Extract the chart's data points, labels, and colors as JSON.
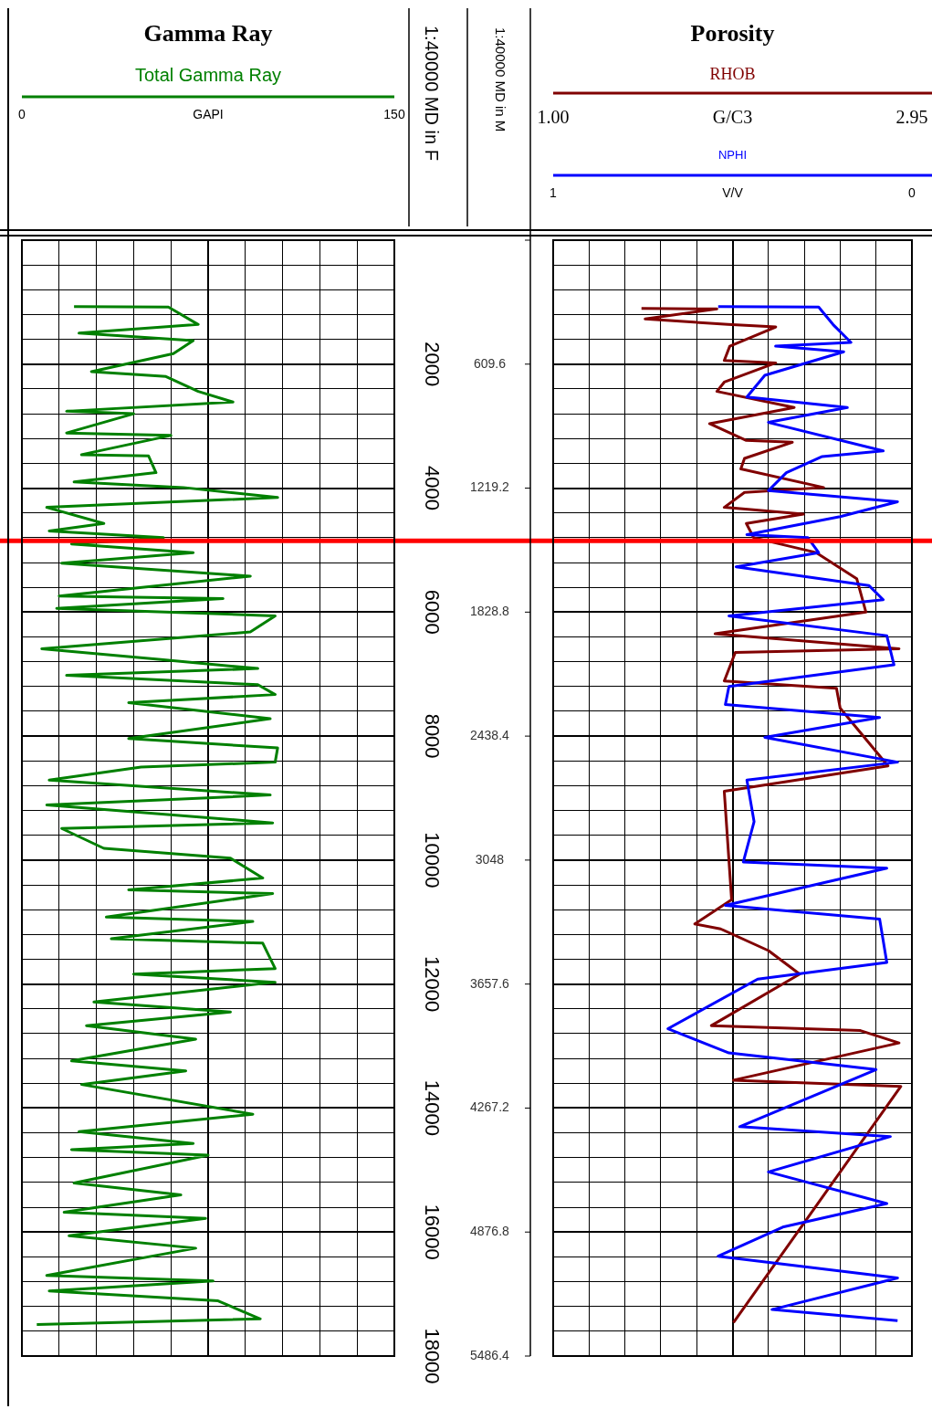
{
  "chart_data": [
    {
      "type": "line",
      "title": "Gamma Ray",
      "xlabel": "GAPI",
      "ylabel": "1:40000 MD in F",
      "y2label": "1:40000 MD in M",
      "legend": "top",
      "grid": true,
      "xlim": [
        0,
        150
      ],
      "xticks": [
        0,
        {
          "value": 15,
          "label": null
        },
        {
          "value": 30,
          "label": null
        },
        {
          "value": 45,
          "label": null
        },
        {
          "value": 60,
          "label": null
        },
        {
          "value": 75,
          "label": null
        },
        {
          "value": 90,
          "label": null
        },
        {
          "value": 105,
          "label": null
        },
        {
          "value": 120,
          "label": null
        },
        {
          "value": 135,
          "label": null
        },
        150
      ],
      "ylim": [
        18000,
        0
      ],
      "yticks": [
        {
          "value": 0,
          "label": null
        },
        {
          "value": 400,
          "label": null
        },
        {
          "value": 800,
          "label": null
        },
        {
          "value": 1200,
          "label": null
        },
        {
          "value": 1600,
          "label": null
        },
        2000,
        {
          "value": 2400,
          "label": null
        },
        {
          "value": 2800,
          "label": null
        },
        {
          "value": 3200,
          "label": null
        },
        {
          "value": 3600,
          "label": null
        },
        4000,
        {
          "value": 4400,
          "label": null
        },
        {
          "value": 4800,
          "label": null
        },
        {
          "value": 5200,
          "label": null
        },
        {
          "value": 5600,
          "label": null
        },
        6000,
        {
          "value": 6400,
          "label": null
        },
        {
          "value": 6800,
          "label": null
        },
        {
          "value": 7200,
          "label": null
        },
        {
          "value": 7600,
          "label": null
        },
        8000,
        {
          "value": 8400,
          "label": null
        },
        {
          "value": 8800,
          "label": null
        },
        {
          "value": 9200,
          "label": null
        },
        {
          "value": 9600,
          "label": null
        },
        10000,
        {
          "value": 10400,
          "label": null
        },
        {
          "value": 10800,
          "label": null
        },
        {
          "value": 11200,
          "label": null
        },
        {
          "value": 11600,
          "label": null
        },
        12000,
        {
          "value": 12400,
          "label": null
        },
        {
          "value": 12800,
          "label": null
        },
        {
          "value": 13200,
          "label": null
        },
        {
          "value": 13600,
          "label": null
        },
        14000,
        {
          "value": 14400,
          "label": null
        },
        {
          "value": 14800,
          "label": null
        },
        {
          "value": 15200,
          "label": null
        },
        {
          "value": 15600,
          "label": null
        },
        16000,
        {
          "value": 16400,
          "label": null
        },
        {
          "value": 16800,
          "label": null
        },
        {
          "value": 17200,
          "label": null
        },
        {
          "value": 17600,
          "label": null
        },
        18000
      ],
      "y2lim": [
        5486.4,
        0
      ],
      "y2ticks": [
        {
          "value": 0,
          "label": null
        },
        609.6,
        1219.2,
        1828.8,
        2438.4,
        3048,
        3657.6,
        4267.2,
        4876.8,
        5486.4
      ],
      "ref_lines": [
        {
          "axis": "y",
          "value": 4850,
          "color": "#ff0000"
        }
      ],
      "series": [
        {
          "name": "Total Gamma Ray",
          "color": "#008000",
          "x": [
            21,
            59,
            71,
            23,
            69,
            61,
            28,
            58,
            71,
            85,
            18,
            45,
            18,
            60,
            24,
            51,
            54,
            21,
            65,
            103,
            10,
            33,
            11,
            57,
            20,
            69,
            16,
            92,
            15,
            81,
            14,
            102,
            92,
            8,
            55,
            95,
            18,
            95,
            102,
            43,
            100,
            43,
            103,
            102,
            48,
            11,
            100,
            10,
            101,
            16,
            33,
            84,
            97,
            43,
            101,
            34,
            93,
            36,
            97,
            102,
            45,
            102,
            29,
            84,
            26,
            70,
            20,
            66,
            24,
            93,
            23,
            69,
            20,
            75,
            21,
            64,
            17,
            74,
            19,
            70,
            10,
            77,
            11,
            79,
            96,
            6
          ],
          "values": [
            1070,
            1080,
            1360,
            1500,
            1620,
            1830,
            2120,
            2200,
            2440,
            2610,
            2760,
            2800,
            3110,
            3150,
            3460,
            3480,
            3750,
            3900,
            3990,
            4150,
            4310,
            4570,
            4690,
            4800,
            4900,
            5040,
            5210,
            5420,
            5740,
            5780,
            5940,
            6060,
            6320,
            6590,
            6760,
            6910,
            7020,
            7170,
            7330,
            7460,
            7720,
            8040,
            8190,
            8420,
            8500,
            8710,
            8950,
            9110,
            9400,
            9490,
            9810,
            9970,
            10290,
            10480,
            10540,
            10920,
            10990,
            11270,
            11340,
            11750,
            11840,
            11970,
            12290,
            12450,
            12670,
            12890,
            13240,
            13400,
            13620,
            14100,
            14380,
            14570,
            14670,
            14760,
            15210,
            15400,
            15680,
            15780,
            16060,
            16260,
            16700,
            16790,
            16950,
            17110,
            17400,
            17490
          ]
        }
      ]
    },
    {
      "type": "line",
      "title": "Porosity",
      "xlabel": "G/C3",
      "x2label": "V/V",
      "legend": "top",
      "grid": true,
      "tick_labels": "x",
      "xlim": [
        1,
        2.95
      ],
      "xticks": [
        {
          "value": 1,
          "label": "1.00"
        },
        2.95
      ],
      "x2lim": [
        1,
        0
      ],
      "x2ticks": [
        1,
        {
          "value": 0.9,
          "label": null
        },
        {
          "value": 0.8,
          "label": null
        },
        {
          "value": 0.7,
          "label": null
        },
        {
          "value": 0.6,
          "label": null
        },
        {
          "value": 0.5,
          "label": null
        },
        {
          "value": 0.4,
          "label": null
        },
        {
          "value": 0.3,
          "label": null
        },
        {
          "value": 0.2,
          "label": null
        },
        {
          "value": 0.1,
          "label": null
        },
        0
      ],
      "ylim": [
        18000,
        0
      ],
      "yticks": [
        {
          "value": 0,
          "label": null
        },
        {
          "value": 400,
          "label": null
        },
        {
          "value": 800,
          "label": null
        },
        {
          "value": 1200,
          "label": null
        },
        {
          "value": 1600,
          "label": null
        },
        2000,
        {
          "value": 2400,
          "label": null
        },
        {
          "value": 2800,
          "label": null
        },
        {
          "value": 3200,
          "label": null
        },
        {
          "value": 3600,
          "label": null
        },
        4000,
        {
          "value": 4400,
          "label": null
        },
        {
          "value": 4800,
          "label": null
        },
        {
          "value": 5200,
          "label": null
        },
        {
          "value": 5600,
          "label": null
        },
        6000,
        {
          "value": 6400,
          "label": null
        },
        {
          "value": 6800,
          "label": null
        },
        {
          "value": 7200,
          "label": null
        },
        {
          "value": 7600,
          "label": null
        },
        8000,
        {
          "value": 8400,
          "label": null
        },
        {
          "value": 8800,
          "label": null
        },
        {
          "value": 9200,
          "label": null
        },
        {
          "value": 9600,
          "label": null
        },
        10000,
        {
          "value": 10400,
          "label": null
        },
        {
          "value": 10800,
          "label": null
        },
        {
          "value": 11200,
          "label": null
        },
        {
          "value": 11600,
          "label": null
        },
        12000,
        {
          "value": 12400,
          "label": null
        },
        {
          "value": 12800,
          "label": null
        },
        {
          "value": 13200,
          "label": null
        },
        {
          "value": 13600,
          "label": null
        },
        14000,
        {
          "value": 14400,
          "label": null
        },
        {
          "value": 14800,
          "label": null
        },
        {
          "value": 15200,
          "label": null
        },
        {
          "value": 15600,
          "label": null
        },
        16000,
        {
          "value": 16400,
          "label": null
        },
        {
          "value": 16800,
          "label": null
        },
        {
          "value": 17200,
          "label": null
        },
        {
          "value": 17600,
          "label": null
        },
        18000
      ],
      "ref_lines": [
        {
          "axis": "y",
          "value": 4850,
          "color": "#ff0000"
        }
      ],
      "series": [
        {
          "name": "RHOB",
          "color": "#800000",
          "x": [
            1.48,
            1.89,
            1.5,
            1.95,
            2.21,
            1.96,
            1.93,
            2.21,
            1.93,
            1.89,
            2.31,
            1.85,
            2.05,
            2.3,
            2.04,
            2.02,
            2.47,
            2.04,
            1.93,
            2.36,
            2.05,
            2.09,
            2.43,
            2.65,
            2.7,
            1.88,
            2.88,
            1.99,
            1.93,
            2.54,
            2.56,
            2.82,
            1.93,
            1.97,
            1.77,
            1.91,
            2.17,
            2.34,
            1.86,
            2.67,
            2.88,
            1.98,
            2.89,
            1.98
          ],
          "values": [
            1100,
            1110,
            1270,
            1360,
            1400,
            1710,
            1940,
            1980,
            2290,
            2440,
            2700,
            2960,
            3230,
            3260,
            3520,
            3690,
            3990,
            4070,
            4310,
            4420,
            4570,
            4800,
            5040,
            5460,
            6000,
            6350,
            6590,
            6650,
            7110,
            7230,
            7550,
            8480,
            8890,
            10640,
            11030,
            11110,
            11460,
            11840,
            12670,
            12750,
            12950,
            13550,
            13650,
            17460
          ]
        },
        {
          "name": "NPHI",
          "color": "#0000ff",
          "axis": "x2",
          "x": [
            0.54,
            0.26,
            0.22,
            0.17,
            0.38,
            0.19,
            0.41,
            0.46,
            0.18,
            0.4,
            0.08,
            0.25,
            0.35,
            0.4,
            0.04,
            0.2,
            0.46,
            0.29,
            0.26,
            0.49,
            0.12,
            0.08,
            0.51,
            0.07,
            0.05,
            0.51,
            0.52,
            0.09,
            0.41,
            0.04,
            0.46,
            0.44,
            0.47,
            0.07,
            0.52,
            0.09,
            0.07,
            0.43,
            0.68,
            0.51,
            0.1,
            0.48,
            0.06,
            0.4,
            0.07,
            0.36,
            0.54,
            0.04,
            0.39,
            0.04
          ],
          "values": [
            1070,
            1080,
            1360,
            1650,
            1710,
            1800,
            2180,
            2530,
            2700,
            2940,
            3400,
            3490,
            3750,
            4040,
            4220,
            4460,
            4750,
            4800,
            5040,
            5270,
            5570,
            5800,
            6060,
            6380,
            6850,
            7200,
            7490,
            7700,
            8020,
            8420,
            8710,
            9380,
            10030,
            10130,
            10730,
            10950,
            11650,
            11920,
            12720,
            13110,
            13380,
            14300,
            14460,
            15030,
            15540,
            15920,
            16390,
            16740,
            17250,
            17430
          ]
        }
      ]
    }
  ]
}
